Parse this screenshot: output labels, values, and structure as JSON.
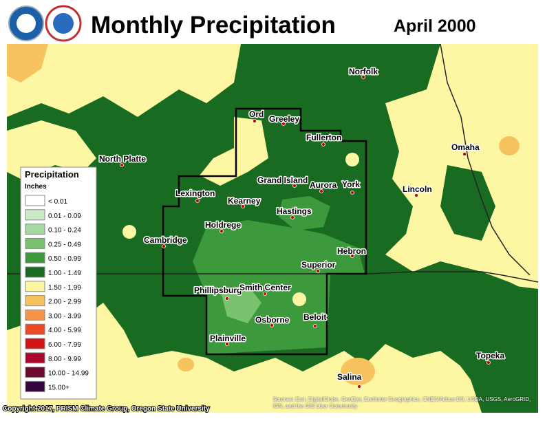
{
  "header": {
    "title": "Monthly Precipitation",
    "date": "April 2000"
  },
  "legend": {
    "title": "Precipitation",
    "units": "Inches",
    "entries": [
      {
        "label": "< 0.01",
        "color": "#ffffff"
      },
      {
        "label": "0.01 - 0.09",
        "color": "#c9ebc6"
      },
      {
        "label": "0.10 - 0.24",
        "color": "#a6d9a0"
      },
      {
        "label": "0.25 - 0.49",
        "color": "#79c36f"
      },
      {
        "label": "0.50 - 0.99",
        "color": "#3c9a3c"
      },
      {
        "label": "1.00 - 1.49",
        "color": "#1a6b22"
      },
      {
        "label": "1.50 - 1.99",
        "color": "#fdf6a3"
      },
      {
        "label": "2.00 - 2.99",
        "color": "#f7c35f"
      },
      {
        "label": "3.00 - 3.99",
        "color": "#f59447"
      },
      {
        "label": "4.00 - 5.99",
        "color": "#ea4a25"
      },
      {
        "label": "6.00 - 7.99",
        "color": "#d11414"
      },
      {
        "label": "8.00 - 9.99",
        "color": "#a8072b"
      },
      {
        "label": "10.00 - 14.99",
        "color": "#6b0a2e"
      },
      {
        "label": "15.00+",
        "color": "#36073f"
      }
    ]
  },
  "cities": [
    "Norfolk",
    "Ord",
    "Greeley",
    "Fullerton",
    "Omaha",
    "North Platte",
    "Grand Island",
    "Aurora",
    "York",
    "Lincoln",
    "Lexington",
    "Kearney",
    "Hastings",
    "Holdrege",
    "Cambridge",
    "Hebron",
    "Superior",
    "Phillipsburg",
    "Smith Center",
    "Beloit",
    "Osborne",
    "Plainville",
    "Topeka",
    "Salina"
  ],
  "footer": {
    "copyright": "Copyright 2017, PRISM Climate Group, Oregon State University",
    "sources": "Sources: Esri, DigitalGlobe, GeoEye, Earthstar Geographics, CNES/Airbus DS, USDA, USGS, AeroGRID, IGN, and the GIS User Community"
  }
}
